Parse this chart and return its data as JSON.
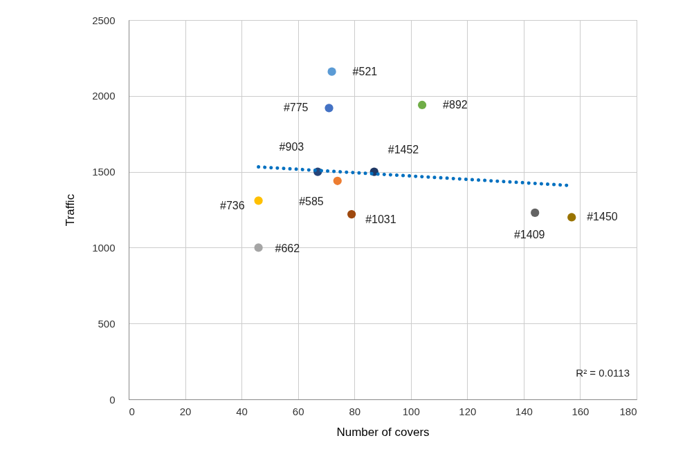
{
  "chart_data": {
    "type": "scatter",
    "xlabel": "Number of covers",
    "ylabel": "Traffic",
    "xlim": [
      0,
      180
    ],
    "ylim": [
      0,
      2500
    ],
    "xticks": [
      0,
      20,
      40,
      60,
      80,
      100,
      120,
      140,
      160,
      180
    ],
    "yticks": [
      0,
      500,
      1000,
      1500,
      2000,
      2500
    ],
    "grid": true,
    "series": [
      {
        "x": [
          72,
          71,
          104,
          67,
          87,
          74,
          46,
          79,
          46,
          144,
          157
        ],
        "values": [
          2160,
          1920,
          1940,
          1500,
          1500,
          1440,
          1310,
          1220,
          1000,
          1230,
          1200
        ],
        "colors": [
          "#5b9bd5",
          "#4472c4",
          "#70ad47",
          "#264478",
          "#1f3864",
          "#ed7d31",
          "#ffc000",
          "#9e480e",
          "#a5a5a5",
          "#636363",
          "#997300"
        ],
        "marker": "circle"
      },
      {
        "type": "line",
        "x": [
          46,
          156
        ],
        "values": [
          1532,
          1410
        ],
        "color": "#0070c0",
        "line_style": "dotted"
      }
    ],
    "annotations": [
      {
        "text": "#521",
        "x": 72,
        "y": 2160
      },
      {
        "text": "#775",
        "x": 71,
        "y": 1920
      },
      {
        "text": "#892",
        "x": 104,
        "y": 1940
      },
      {
        "text": "#903",
        "x": 67,
        "y": 1500
      },
      {
        "text": "#1452",
        "x": 87,
        "y": 1500
      },
      {
        "text": "#585",
        "x": 74,
        "y": 1440
      },
      {
        "text": "#736",
        "x": 46,
        "y": 1310
      },
      {
        "text": "#1031",
        "x": 79,
        "y": 1220
      },
      {
        "text": "#662",
        "x": 46,
        "y": 1000
      },
      {
        "text": "#1409",
        "x": 144,
        "y": 1230
      },
      {
        "text": "#1450",
        "x": 157,
        "y": 1200
      },
      "R² = 0.0113"
    ]
  }
}
